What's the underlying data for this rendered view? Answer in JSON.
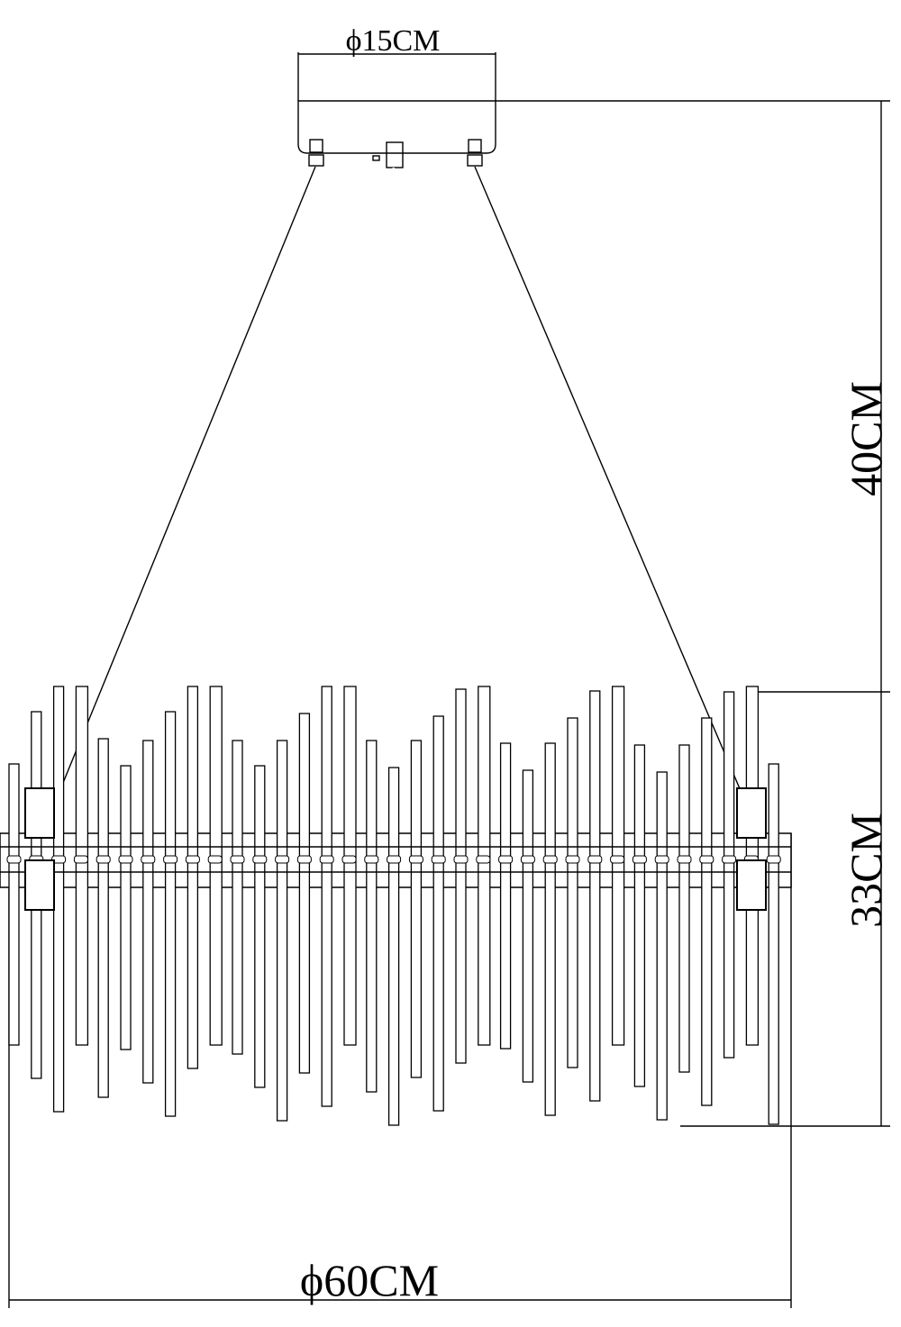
{
  "dimensions": {
    "canopy_diameter": "ϕ15CM",
    "drop_height": "40CM",
    "body_height": "33CM",
    "body_diameter": "ϕ60CM"
  }
}
